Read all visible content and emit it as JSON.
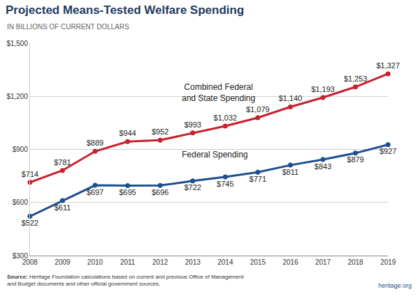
{
  "chart_data": {
    "type": "line",
    "title": "Projected Means-Tested Welfare Spending",
    "subtitle": "IN BILLIONS OF CURRENT DOLLARS",
    "source": "Source: Heritage Foundation calculations based on current and previous Office of Management and Budget documents and other official government sources.",
    "credit": "heritage.org",
    "x": [
      2008,
      2009,
      2010,
      2011,
      2012,
      2013,
      2014,
      2015,
      2016,
      2017,
      2018,
      2019
    ],
    "series": [
      {
        "name": "Combined Federal and State Spending",
        "color": "#c8202e",
        "values": [
          714,
          781,
          889,
          944,
          952,
          993,
          1032,
          1079,
          1140,
          1193,
          1253,
          1327
        ],
        "value_labels": [
          "$714",
          "$781",
          "$889",
          "$944",
          "$952",
          "$993",
          "$1,032",
          "$1,079",
          "$1,140",
          "$1,193",
          "$1,253",
          "$1,327"
        ]
      },
      {
        "name": "Federal Spending",
        "color": "#1d4f91",
        "values": [
          522,
          611,
          697,
          695,
          696,
          722,
          745,
          771,
          811,
          843,
          879,
          927
        ],
        "value_labels": [
          "$522",
          "$611",
          "$697",
          "$695",
          "$696",
          "$722",
          "$745",
          "$771",
          "$811",
          "$843",
          "$879",
          "$927"
        ]
      }
    ],
    "xlim": [
      2008,
      2019
    ],
    "xticks": [
      2008,
      2009,
      2010,
      2011,
      2012,
      2013,
      2014,
      2015,
      2016,
      2017,
      2018,
      2019
    ],
    "ylim": [
      300,
      1500
    ],
    "yticks": [
      {
        "value": 300,
        "label": "$300"
      },
      {
        "value": 600,
        "label": "$600"
      },
      {
        "value": 900,
        "label": "$900"
      },
      {
        "value": 1200,
        "label": "$1,200"
      },
      {
        "value": 1500,
        "label": "$1,500"
      }
    ],
    "grid": true,
    "data_labels": true,
    "marker": "circle"
  }
}
